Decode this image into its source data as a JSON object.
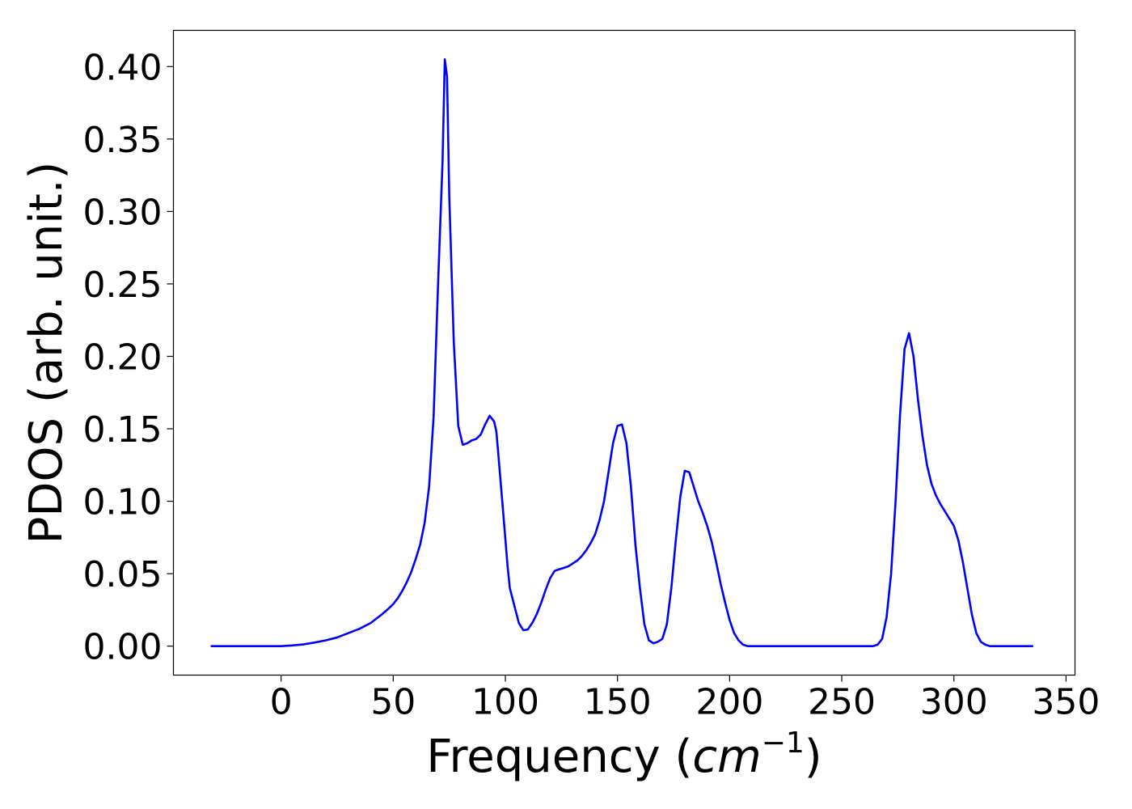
{
  "chart_data": {
    "type": "line",
    "title": "",
    "xlabel": "Frequency",
    "xlabel_open": "(",
    "xlabel_unit_base": "cm",
    "xlabel_unit_exp": "−1",
    "xlabel_close": ")",
    "ylabel": "PDOS (arb. unit.)",
    "xlim": [
      -48,
      354
    ],
    "ylim": [
      -0.02,
      0.425
    ],
    "xticks": [
      0,
      50,
      100,
      150,
      200,
      250,
      300,
      350
    ],
    "xtick_labels": [
      "0",
      "50",
      "100",
      "150",
      "200",
      "250",
      "300",
      "350"
    ],
    "yticks": [
      0.0,
      0.05,
      0.1,
      0.15,
      0.2,
      0.25,
      0.3,
      0.35,
      0.4
    ],
    "ytick_labels": [
      "0.00",
      "0.05",
      "0.10",
      "0.15",
      "0.20",
      "0.25",
      "0.30",
      "0.35",
      "0.40"
    ],
    "grid": false,
    "legend": "none",
    "line_color": "#0000ff",
    "series": [
      {
        "x": [
          -31,
          -20,
          -10,
          0,
          5,
          10,
          15,
          20,
          25,
          30,
          35,
          40,
          45,
          48,
          50,
          52,
          54,
          56,
          58,
          60,
          62,
          64,
          66,
          68,
          70,
          72,
          73,
          74,
          75,
          77,
          79,
          81,
          83,
          85,
          87,
          89,
          91,
          93,
          95,
          96,
          97,
          99,
          101,
          102,
          104,
          106,
          108,
          110,
          112,
          114,
          116,
          118,
          120,
          122,
          124,
          126,
          128,
          130,
          132,
          134,
          136,
          138,
          140,
          142,
          144,
          146,
          148,
          150,
          152,
          154,
          156,
          158,
          160,
          162,
          164,
          166,
          168,
          170,
          172,
          174,
          176,
          178,
          180,
          182,
          184,
          186,
          188,
          190,
          192,
          194,
          196,
          198,
          200,
          202,
          204,
          206,
          208,
          210,
          215,
          220,
          230,
          240,
          250,
          260,
          264,
          266,
          268,
          270,
          272,
          274,
          276,
          278,
          280,
          282,
          284,
          286,
          288,
          290,
          292,
          294,
          296,
          298,
          300,
          302,
          304,
          306,
          308,
          310,
          312,
          314,
          316,
          320,
          330,
          335
        ],
        "y": [
          0,
          0,
          0,
          0,
          0.0005,
          0.0012,
          0.0025,
          0.004,
          0.006,
          0.009,
          0.012,
          0.016,
          0.022,
          0.026,
          0.029,
          0.033,
          0.038,
          0.044,
          0.051,
          0.06,
          0.07,
          0.085,
          0.11,
          0.158,
          0.25,
          0.335,
          0.405,
          0.393,
          0.31,
          0.21,
          0.152,
          0.139,
          0.14,
          0.142,
          0.143,
          0.146,
          0.153,
          0.159,
          0.155,
          0.148,
          0.13,
          0.093,
          0.055,
          0.04,
          0.028,
          0.016,
          0.011,
          0.0115,
          0.016,
          0.022,
          0.03,
          0.039,
          0.047,
          0.052,
          0.053,
          0.054,
          0.055,
          0.057,
          0.059,
          0.062,
          0.066,
          0.071,
          0.077,
          0.087,
          0.1,
          0.12,
          0.14,
          0.152,
          0.153,
          0.14,
          0.11,
          0.07,
          0.04,
          0.015,
          0.004,
          0.002,
          0.003,
          0.005,
          0.015,
          0.04,
          0.073,
          0.103,
          0.121,
          0.12,
          0.11,
          0.1,
          0.092,
          0.083,
          0.072,
          0.058,
          0.043,
          0.03,
          0.018,
          0.009,
          0.004,
          0.001,
          0,
          0,
          0,
          0,
          0,
          0,
          0,
          0,
          0,
          0.001,
          0.005,
          0.02,
          0.05,
          0.1,
          0.16,
          0.205,
          0.216,
          0.2,
          0.17,
          0.145,
          0.125,
          0.112,
          0.104,
          0.098,
          0.093,
          0.088,
          0.083,
          0.073,
          0.058,
          0.04,
          0.022,
          0.009,
          0.003,
          0.001,
          0,
          0,
          0,
          0
        ]
      }
    ]
  }
}
